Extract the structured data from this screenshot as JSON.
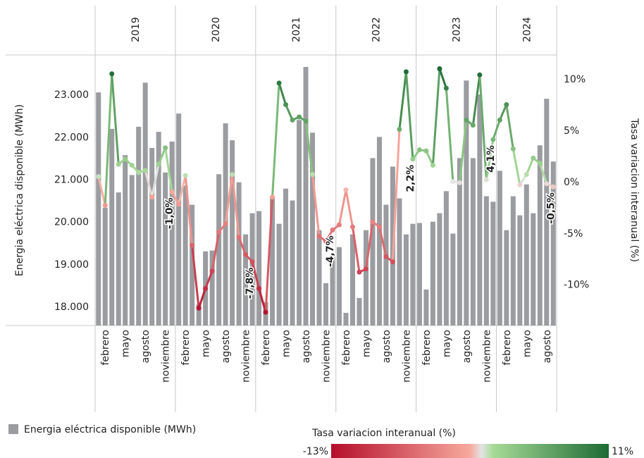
{
  "chart_data": {
    "type": "bar_line",
    "y_label": "Energia eléctrica disponible (MWh)",
    "y2_label": "Tasa variacion interanual (%)",
    "groups": [
      {
        "name": "2019",
        "categories": [
          null,
          "febrero",
          null,
          null,
          "mayo",
          null,
          null,
          "agosto",
          null,
          null,
          "noviembre",
          null
        ]
      },
      {
        "name": "2020",
        "categories": [
          null,
          "febrero",
          null,
          null,
          "mayo",
          null,
          null,
          "agosto",
          null,
          null,
          "noviembre",
          null
        ]
      },
      {
        "name": "2021",
        "categories": [
          null,
          "febrero",
          null,
          null,
          "mayo",
          null,
          null,
          "agosto",
          null,
          null,
          "noviembre",
          null
        ]
      },
      {
        "name": "2022",
        "categories": [
          null,
          "febrero",
          null,
          null,
          "mayo",
          null,
          null,
          "agosto",
          null,
          null,
          "noviembre",
          null
        ]
      },
      {
        "name": "2023",
        "categories": [
          null,
          "febrero",
          null,
          null,
          "mayo",
          null,
          null,
          "agosto",
          null,
          null,
          "noviembre",
          null
        ]
      },
      {
        "name": "2024",
        "categories": [
          null,
          "febrero",
          null,
          null,
          "mayo",
          null,
          null,
          "agosto",
          null
        ]
      }
    ],
    "series": [
      {
        "name": "Energia eléctrica disponible (MWh)",
        "type": "bar",
        "color": "#9a9ca0",
        "values": [
          23050,
          20330,
          22190,
          20690,
          21570,
          21100,
          22240,
          23280,
          21740,
          22120,
          21160,
          21890,
          22550,
          20850,
          20400,
          18050,
          19300,
          19320,
          21120,
          22320,
          21920,
          20930,
          19700,
          20200,
          20250,
          18100,
          20600,
          19950,
          20780,
          20500,
          22400,
          23650,
          22100,
          19800,
          18550,
          19250,
          19400,
          17850,
          19700,
          18200,
          19800,
          21500,
          22000,
          20400,
          21300,
          20550,
          19700,
          19950,
          19970,
          18400,
          20000,
          20200,
          20720,
          19720,
          21500,
          23330,
          21500,
          23000,
          20600,
          20470,
          21200,
          19800,
          20600,
          20150,
          20880,
          20200,
          21800,
          22900,
          21420
        ]
      },
      {
        "name": "Tasa variacion interanual (%)",
        "type": "line",
        "axis": "y2",
        "values": [
          0.5,
          -2.3,
          10.5,
          1.7,
          2.2,
          1.6,
          0.9,
          1.1,
          -1.5,
          1.7,
          3.3,
          -1.0,
          -2.2,
          0.6,
          -6.2,
          -12.3,
          -10.4,
          -8.7,
          -4.9,
          -4.1,
          0.7,
          -5.4,
          -7.1,
          -7.8,
          -10.4,
          -12.7,
          -1.5,
          9.6,
          7.5,
          6.0,
          6.3,
          5.9,
          0.7,
          -5.3,
          -5.8,
          -4.7,
          -4.2,
          -0.8,
          -4.4,
          -8.8,
          -8.5,
          -3.9,
          -4.4,
          -7.3,
          -7.8,
          5.1,
          10.7,
          2.2,
          3.1,
          3.0,
          1.6,
          11.0,
          9.1,
          0.0,
          -0.1,
          6.0,
          5.5,
          10.4,
          0.2,
          4.1,
          6.0,
          7.5,
          3.2,
          -0.3,
          0.7,
          2.3,
          1.8,
          -0.2,
          -0.5
        ],
        "value_labels": [
          null,
          null,
          null,
          null,
          null,
          null,
          null,
          null,
          null,
          null,
          null,
          "-1,0%",
          null,
          null,
          null,
          null,
          null,
          null,
          null,
          null,
          null,
          null,
          null,
          "-7,8%",
          null,
          null,
          null,
          null,
          null,
          null,
          null,
          null,
          null,
          null,
          null,
          "-4,7%",
          null,
          null,
          null,
          null,
          null,
          null,
          null,
          null,
          null,
          null,
          null,
          "2,2%",
          null,
          null,
          null,
          null,
          null,
          null,
          null,
          null,
          null,
          null,
          null,
          "4,1%",
          null,
          null,
          null,
          null,
          null,
          null,
          null,
          null,
          "-0,5%"
        ]
      }
    ],
    "ylim": [
      17550,
      23900
    ],
    "yticks": [
      {
        "value": 18000,
        "label": "18.000"
      },
      {
        "value": 19000,
        "label": "19.000"
      },
      {
        "value": 20000,
        "label": "20.000"
      },
      {
        "value": 21000,
        "label": "21.000"
      },
      {
        "value": 22000,
        "label": "22.000"
      },
      {
        "value": 23000,
        "label": "23.000"
      }
    ],
    "y2lim": [
      -14,
      12.2
    ],
    "y2ticks": [
      {
        "value": -10,
        "label": "-10%"
      },
      {
        "value": -5,
        "label": "-5%"
      },
      {
        "value": 0,
        "label": "0%"
      },
      {
        "value": 5,
        "label": "5%"
      },
      {
        "value": 10,
        "label": "10%"
      }
    ],
    "colorscale": [
      {
        "value": -13,
        "color": "#b50d2b"
      },
      {
        "value": -1,
        "color": "#f7a99d"
      },
      {
        "value": 0,
        "color": "#e4e4e4"
      },
      {
        "value": 1,
        "color": "#a6da96"
      },
      {
        "value": 11,
        "color": "#1c6a34"
      }
    ],
    "colorbar_range": [
      {
        "value": -13,
        "label": "-13%"
      },
      {
        "value": 11,
        "label": "11%"
      }
    ],
    "grid": false
  }
}
